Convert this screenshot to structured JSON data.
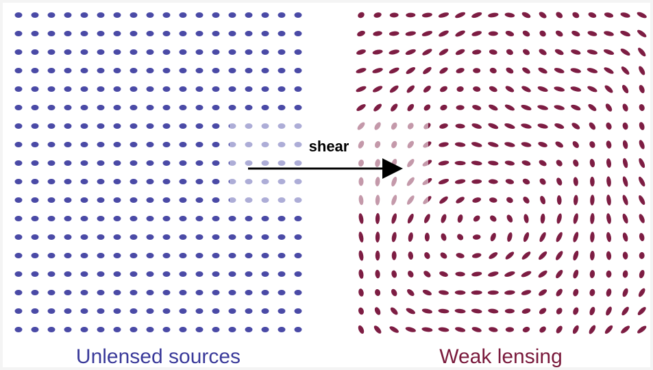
{
  "labels": {
    "left": "Unlensed sources",
    "right": "Weak lensing",
    "arrow": "shear"
  }
}
